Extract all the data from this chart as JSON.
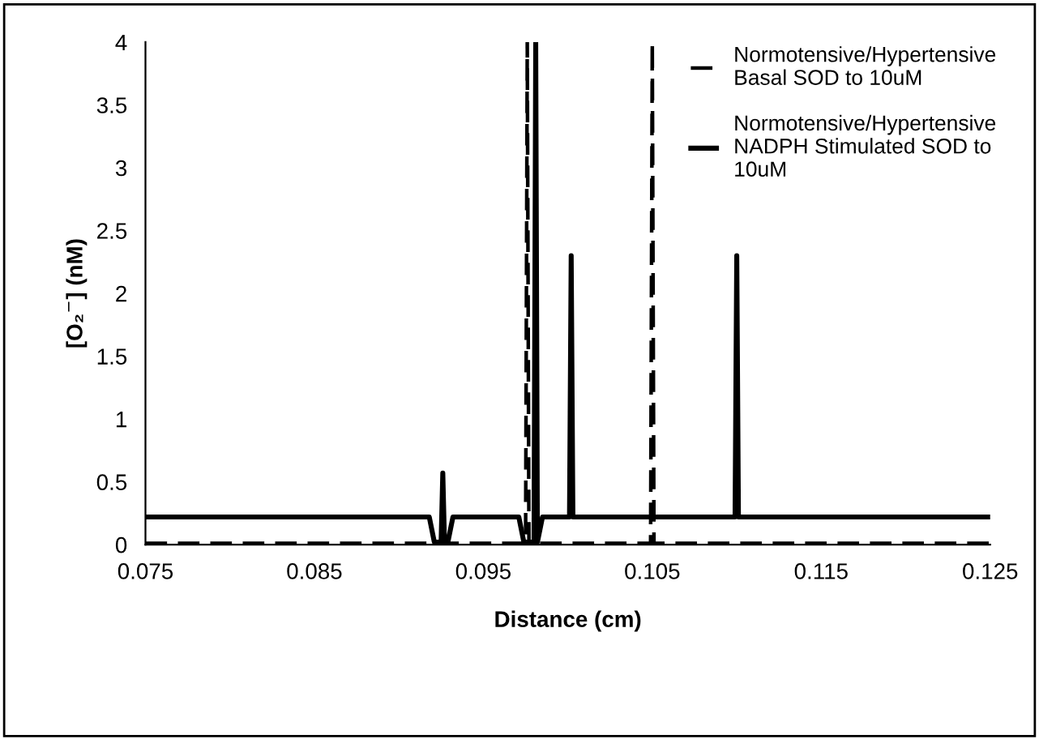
{
  "chart_data": {
    "type": "line",
    "xlabel": "Distance (cm)",
    "ylabel": "[O₂$^{−}$] (nM)",
    "xlim": [
      0.075,
      0.125
    ],
    "xticks": [
      0.075,
      0.085,
      0.095,
      0.105,
      0.115,
      0.125
    ],
    "ylim": [
      0,
      4
    ],
    "yticks": [
      0,
      0.5,
      1,
      1.5,
      2,
      2.5,
      3,
      3.5,
      4
    ],
    "grid": false,
    "legend": "top right",
    "marker": "none",
    "series": [
      {
        "name": "Normotensive/Hypertensive\nBasal SOD to 10uM",
        "color": "#000000",
        "line_style": "dashed",
        "x": [
          0.075,
          0.0975,
          0.0976,
          0.0977,
          0.1049,
          0.105,
          0.1051,
          0.125
        ],
        "values": [
          0.01,
          0.01,
          4,
          0.01,
          0.01,
          4,
          0.01,
          0.01
        ]
      },
      {
        "name": "Normotensive/Hypertensive\nNADPH Stimulated SOD to\n10uM",
        "color": "#000000",
        "line_style": "solid",
        "x": [
          0.075,
          0.0918,
          0.0921,
          0.0925,
          0.0926,
          0.0927,
          0.0929,
          0.0932,
          0.0971,
          0.0974,
          0.098,
          0.0981,
          0.0982,
          0.0985,
          0.1001,
          0.1002,
          0.1003,
          0.1099,
          0.11,
          0.1101,
          0.125
        ],
        "values": [
          0.22,
          0.22,
          0.02,
          0.02,
          0.57,
          0.02,
          0.02,
          0.22,
          0.22,
          0.02,
          0.02,
          4,
          0.02,
          0.22,
          0.22,
          2.3,
          0.22,
          0.22,
          2.3,
          0.22,
          0.22
        ]
      }
    ]
  }
}
